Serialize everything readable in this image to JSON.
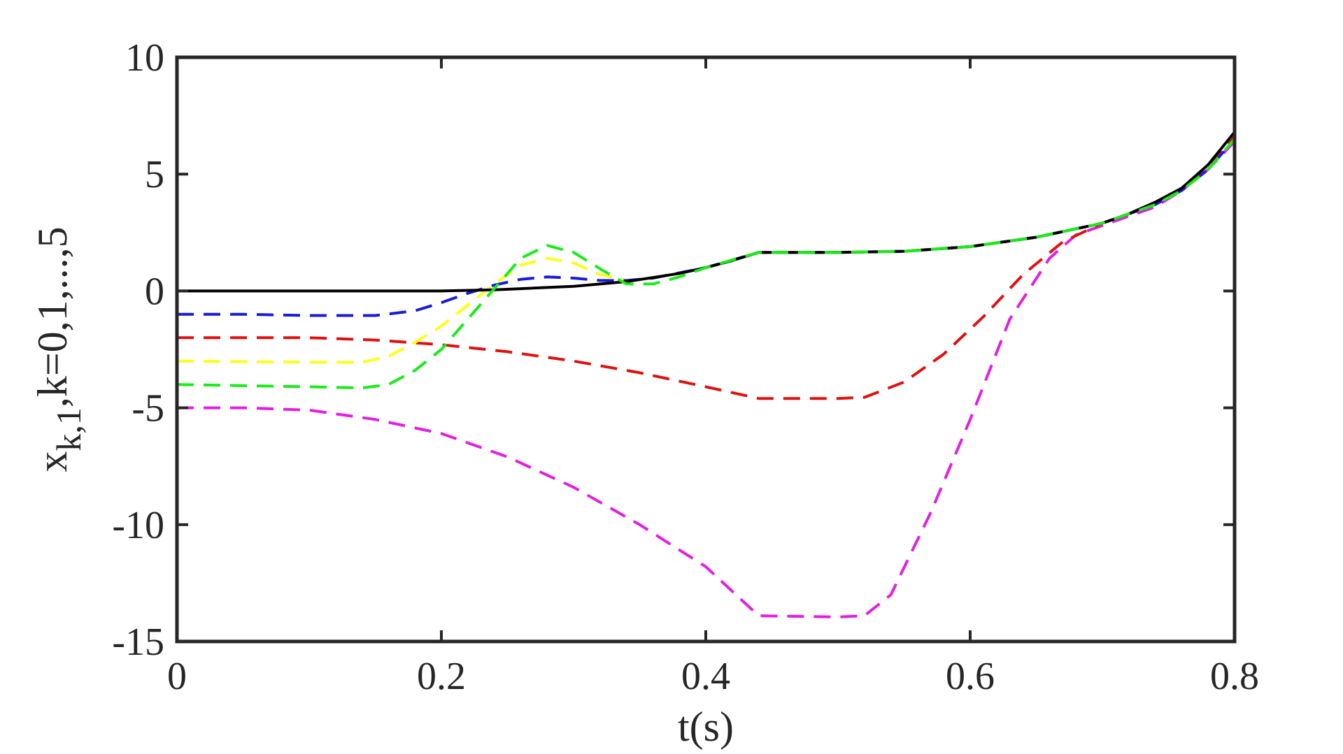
{
  "chart_data": {
    "type": "line",
    "xlabel": "t(s)",
    "ylabel_main": "x",
    "ylabel_sub": "k,1",
    "ylabel_rest": ",k=0,1,...,5",
    "xlim": [
      0,
      0.8
    ],
    "ylim": [
      -15,
      10
    ],
    "xticks": [
      0,
      0.2,
      0.4,
      0.6,
      0.8
    ],
    "xtick_labels": [
      "0",
      "0.2",
      "0.4",
      "0.6",
      "0.8"
    ],
    "yticks": [
      10,
      5,
      0,
      -5,
      -10,
      -15
    ],
    "ytick_labels": [
      "10",
      "5",
      "0",
      "-5",
      "-10",
      "-15"
    ],
    "grid": false,
    "series": [
      {
        "color": "#e31ee3",
        "style": "dashed",
        "points": [
          [
            0,
            -5
          ],
          [
            0.05,
            -5
          ],
          [
            0.1,
            -5.1
          ],
          [
            0.15,
            -5.5
          ],
          [
            0.2,
            -6.1
          ],
          [
            0.25,
            -7.1
          ],
          [
            0.3,
            -8.4
          ],
          [
            0.35,
            -10
          ],
          [
            0.4,
            -11.8
          ],
          [
            0.44,
            -13.9
          ],
          [
            0.5,
            -13.95
          ],
          [
            0.52,
            -13.9
          ],
          [
            0.54,
            -13
          ],
          [
            0.57,
            -9.5
          ],
          [
            0.6,
            -5.5
          ],
          [
            0.63,
            -1.2
          ],
          [
            0.66,
            1.4
          ],
          [
            0.68,
            2.4
          ],
          [
            0.7,
            2.8
          ],
          [
            0.72,
            3.2
          ],
          [
            0.74,
            3.6
          ],
          [
            0.76,
            4.3
          ],
          [
            0.78,
            5.2
          ],
          [
            0.8,
            6.4
          ]
        ]
      },
      {
        "color": "#e01010",
        "style": "dashed",
        "points": [
          [
            0,
            -2
          ],
          [
            0.1,
            -2
          ],
          [
            0.15,
            -2.1
          ],
          [
            0.2,
            -2.3
          ],
          [
            0.25,
            -2.6
          ],
          [
            0.3,
            -3
          ],
          [
            0.35,
            -3.5
          ],
          [
            0.4,
            -4.1
          ],
          [
            0.44,
            -4.6
          ],
          [
            0.5,
            -4.6
          ],
          [
            0.52,
            -4.55
          ],
          [
            0.55,
            -3.9
          ],
          [
            0.58,
            -2.7
          ],
          [
            0.61,
            -1.1
          ],
          [
            0.64,
            0.7
          ],
          [
            0.67,
            2.1
          ],
          [
            0.7,
            2.9
          ],
          [
            0.72,
            3.3
          ],
          [
            0.74,
            3.7
          ],
          [
            0.76,
            4.4
          ],
          [
            0.78,
            5.3
          ],
          [
            0.8,
            6.6
          ]
        ]
      },
      {
        "color": "#ffff1a",
        "style": "dashed",
        "points": [
          [
            0,
            -3
          ],
          [
            0.1,
            -3.05
          ],
          [
            0.14,
            -3.05
          ],
          [
            0.16,
            -2.8
          ],
          [
            0.18,
            -2.2
          ],
          [
            0.2,
            -1.5
          ],
          [
            0.22,
            -0.6
          ],
          [
            0.24,
            0.3
          ],
          [
            0.26,
            1.1
          ],
          [
            0.28,
            1.4
          ],
          [
            0.3,
            1.2
          ],
          [
            0.32,
            0.7
          ],
          [
            0.34,
            0.45
          ],
          [
            0.36,
            0.55
          ],
          [
            0.4,
            1
          ],
          [
            0.44,
            1.65
          ],
          [
            0.5,
            1.65
          ],
          [
            0.55,
            1.7
          ],
          [
            0.6,
            1.9
          ],
          [
            0.65,
            2.3
          ],
          [
            0.7,
            2.9
          ],
          [
            0.72,
            3.3
          ],
          [
            0.74,
            3.7
          ],
          [
            0.76,
            4.3
          ],
          [
            0.78,
            5.2
          ],
          [
            0.8,
            6.5
          ]
        ]
      },
      {
        "color": "#1a1adb",
        "style": "dashed",
        "points": [
          [
            0,
            -1
          ],
          [
            0.05,
            -1
          ],
          [
            0.1,
            -1.05
          ],
          [
            0.15,
            -1.05
          ],
          [
            0.18,
            -0.85
          ],
          [
            0.2,
            -0.5
          ],
          [
            0.22,
            -0.1
          ],
          [
            0.24,
            0.25
          ],
          [
            0.26,
            0.5
          ],
          [
            0.28,
            0.6
          ],
          [
            0.3,
            0.55
          ],
          [
            0.32,
            0.45
          ],
          [
            0.34,
            0.45
          ],
          [
            0.36,
            0.55
          ],
          [
            0.4,
            1
          ],
          [
            0.44,
            1.65
          ],
          [
            0.5,
            1.65
          ],
          [
            0.55,
            1.7
          ],
          [
            0.6,
            1.9
          ],
          [
            0.65,
            2.3
          ],
          [
            0.7,
            2.9
          ],
          [
            0.72,
            3.3
          ],
          [
            0.74,
            3.7
          ],
          [
            0.76,
            4.3
          ],
          [
            0.78,
            5.2
          ],
          [
            0.8,
            6.5
          ]
        ]
      },
      {
        "color": "#000000",
        "style": "solid",
        "points": [
          [
            0,
            0
          ],
          [
            0.1,
            0
          ],
          [
            0.2,
            0
          ],
          [
            0.24,
            0.05
          ],
          [
            0.26,
            0.1
          ],
          [
            0.3,
            0.2
          ],
          [
            0.34,
            0.4
          ],
          [
            0.38,
            0.75
          ],
          [
            0.4,
            1
          ],
          [
            0.42,
            1.3
          ],
          [
            0.44,
            1.65
          ],
          [
            0.5,
            1.65
          ],
          [
            0.55,
            1.7
          ],
          [
            0.6,
            1.9
          ],
          [
            0.65,
            2.3
          ],
          [
            0.7,
            2.9
          ],
          [
            0.72,
            3.3
          ],
          [
            0.74,
            3.8
          ],
          [
            0.76,
            4.4
          ],
          [
            0.78,
            5.4
          ],
          [
            0.8,
            6.8
          ]
        ]
      },
      {
        "color": "#1aeb1a",
        "style": "dashed",
        "points": [
          [
            0,
            -4
          ],
          [
            0.1,
            -4.1
          ],
          [
            0.14,
            -4.15
          ],
          [
            0.16,
            -4
          ],
          [
            0.18,
            -3.4
          ],
          [
            0.2,
            -2.5
          ],
          [
            0.22,
            -1.2
          ],
          [
            0.24,
            0.1
          ],
          [
            0.26,
            1.4
          ],
          [
            0.28,
            1.95
          ],
          [
            0.3,
            1.65
          ],
          [
            0.32,
            0.95
          ],
          [
            0.34,
            0.3
          ],
          [
            0.36,
            0.3
          ],
          [
            0.38,
            0.6
          ],
          [
            0.4,
            1
          ],
          [
            0.44,
            1.65
          ],
          [
            0.5,
            1.65
          ],
          [
            0.55,
            1.7
          ],
          [
            0.6,
            1.9
          ],
          [
            0.65,
            2.3
          ],
          [
            0.7,
            2.9
          ],
          [
            0.72,
            3.3
          ],
          [
            0.74,
            3.7
          ],
          [
            0.76,
            4.3
          ],
          [
            0.78,
            5.2
          ],
          [
            0.8,
            6.5
          ]
        ]
      }
    ]
  }
}
